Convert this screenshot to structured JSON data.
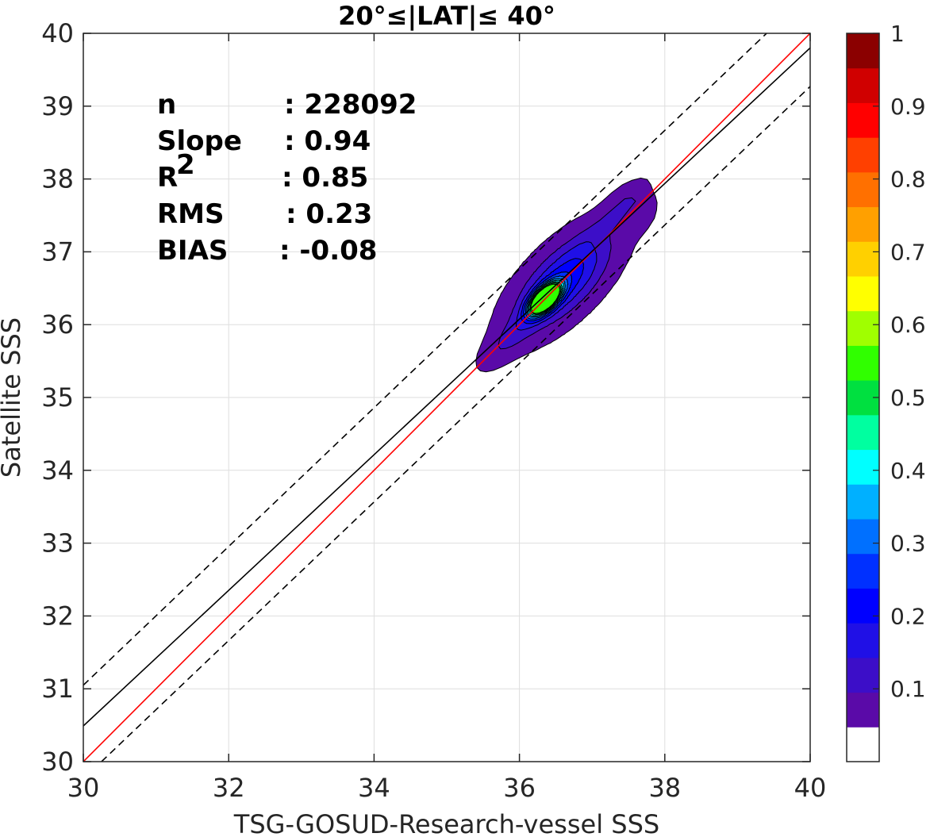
{
  "chart_data": {
    "type": "contour",
    "title": "20°≤|LAT|≤ 40°",
    "xlabel": "TSG-GOSUD-Research-vessel SSS",
    "ylabel": "Satellite SSS",
    "xlim": [
      30,
      40
    ],
    "ylim": [
      30,
      40
    ],
    "xticks": [
      "30",
      "32",
      "34",
      "36",
      "38",
      "40"
    ],
    "yticks": [
      "30",
      "31",
      "32",
      "33",
      "34",
      "35",
      "36",
      "37",
      "38",
      "39",
      "40"
    ],
    "grid": true,
    "stats": [
      {
        "label": "n",
        "value": ": 228092"
      },
      {
        "label": "Slope",
        "value": ": 0.94"
      },
      {
        "label": "R",
        "sup": "2",
        "value": ": 0.85"
      },
      {
        "label": "RMS",
        "value": ": 0.23"
      },
      {
        "label": "BIAS",
        "value": ": -0.08"
      }
    ],
    "lines": [
      {
        "kind": "one-to-one",
        "color": "#ff0000",
        "style": "solid",
        "points": [
          [
            30,
            30
          ],
          [
            40,
            40
          ]
        ]
      },
      {
        "kind": "regression",
        "color": "#000000",
        "style": "solid",
        "points": [
          [
            30,
            30.49
          ],
          [
            40,
            39.8
          ]
        ]
      },
      {
        "kind": "upper-bound",
        "color": "#000000",
        "style": "dashed",
        "points": [
          [
            30,
            31.05
          ],
          [
            39.4,
            40
          ]
        ]
      },
      {
        "kind": "lower-bound",
        "color": "#000000",
        "style": "dashed",
        "points": [
          [
            30.25,
            30
          ],
          [
            40,
            39.27
          ]
        ]
      }
    ],
    "density_peak": {
      "x": 36.35,
      "y": 36.35
    },
    "colorbar": {
      "range": [
        0,
        1
      ],
      "ticks": [
        "0.1",
        "0.2",
        "0.3",
        "0.4",
        "0.5",
        "0.6",
        "0.7",
        "0.8",
        "0.9",
        "1"
      ],
      "colors": [
        "#ffffff",
        "#5a0aa8",
        "#3c0ec8",
        "#2010e6",
        "#0000ff",
        "#0030ff",
        "#0070ff",
        "#00b0ff",
        "#00ffff",
        "#00ffa0",
        "#00e040",
        "#30ff00",
        "#a0ff00",
        "#ffff00",
        "#ffd000",
        "#ffa000",
        "#ff7000",
        "#ff4000",
        "#ff0000",
        "#d00000",
        "#8b0000"
      ]
    }
  }
}
